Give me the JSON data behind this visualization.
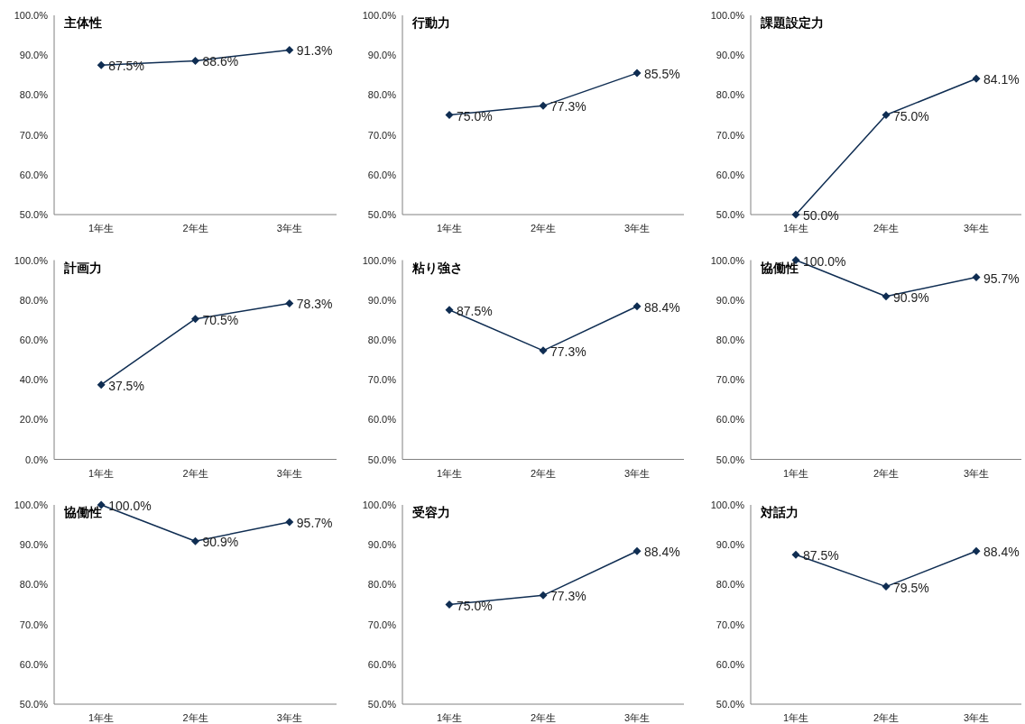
{
  "chart_data": [
    {
      "type": "line",
      "title": "主体性",
      "categories": [
        "1年生",
        "2年生",
        "3年生"
      ],
      "marker": "diamond",
      "ylim": [
        50,
        100
      ],
      "yticks": [
        {
          "value": 50,
          "label": "50.0%"
        },
        {
          "value": 60,
          "label": "60.0%"
        },
        {
          "value": 70,
          "label": "70.0%"
        },
        {
          "value": 80,
          "label": "80.0%"
        },
        {
          "value": 90,
          "label": "90.0%"
        },
        {
          "value": 100,
          "label": "100.0%"
        }
      ],
      "series": [
        {
          "color": "#0f2d52",
          "values": [
            87.5,
            88.6,
            91.3
          ],
          "value_labels": [
            "87.5%",
            "88.6%",
            "91.3%"
          ]
        }
      ]
    },
    {
      "type": "line",
      "title": "行動力",
      "categories": [
        "1年生",
        "2年生",
        "3年生"
      ],
      "marker": "diamond",
      "ylim": [
        50,
        100
      ],
      "yticks": [
        {
          "value": 50,
          "label": "50.0%"
        },
        {
          "value": 60,
          "label": "60.0%"
        },
        {
          "value": 70,
          "label": "70.0%"
        },
        {
          "value": 80,
          "label": "80.0%"
        },
        {
          "value": 90,
          "label": "90.0%"
        },
        {
          "value": 100,
          "label": "100.0%"
        }
      ],
      "series": [
        {
          "color": "#0f2d52",
          "values": [
            75.0,
            77.3,
            85.5
          ],
          "value_labels": [
            "75.0%",
            "77.3%",
            "85.5%"
          ]
        }
      ]
    },
    {
      "type": "line",
      "title": "課題設定力",
      "categories": [
        "1年生",
        "2年生",
        "3年生"
      ],
      "marker": "diamond",
      "ylim": [
        50,
        100
      ],
      "yticks": [
        {
          "value": 50,
          "label": "50.0%"
        },
        {
          "value": 60,
          "label": "60.0%"
        },
        {
          "value": 70,
          "label": "70.0%"
        },
        {
          "value": 80,
          "label": "80.0%"
        },
        {
          "value": 90,
          "label": "90.0%"
        },
        {
          "value": 100,
          "label": "100.0%"
        }
      ],
      "series": [
        {
          "color": "#0f2d52",
          "values": [
            50.0,
            75.0,
            84.1
          ],
          "value_labels": [
            "50.0%",
            "75.0%",
            "84.1%"
          ]
        }
      ]
    },
    {
      "type": "line",
      "title": "計画力",
      "categories": [
        "1年生",
        "2年生",
        "3年生"
      ],
      "marker": "diamond",
      "ylim": [
        0,
        100
      ],
      "yticks": [
        {
          "value": 0,
          "label": "0.0%"
        },
        {
          "value": 20,
          "label": "20.0%"
        },
        {
          "value": 40,
          "label": "40.0%"
        },
        {
          "value": 60,
          "label": "60.0%"
        },
        {
          "value": 80,
          "label": "80.0%"
        },
        {
          "value": 100,
          "label": "100.0%"
        }
      ],
      "series": [
        {
          "color": "#0f2d52",
          "values": [
            37.5,
            70.5,
            78.3
          ],
          "value_labels": [
            "37.5%",
            "70.5%",
            "78.3%"
          ]
        }
      ]
    },
    {
      "type": "line",
      "title": "粘り強さ",
      "categories": [
        "1年生",
        "2年生",
        "3年生"
      ],
      "marker": "diamond",
      "ylim": [
        50,
        100
      ],
      "yticks": [
        {
          "value": 50,
          "label": "50.0%"
        },
        {
          "value": 60,
          "label": "60.0%"
        },
        {
          "value": 70,
          "label": "70.0%"
        },
        {
          "value": 80,
          "label": "80.0%"
        },
        {
          "value": 90,
          "label": "90.0%"
        },
        {
          "value": 100,
          "label": "100.0%"
        }
      ],
      "series": [
        {
          "color": "#0f2d52",
          "values": [
            87.5,
            77.3,
            88.4
          ],
          "value_labels": [
            "87.5%",
            "77.3%",
            "88.4%"
          ]
        }
      ]
    },
    {
      "type": "line",
      "title": "協働性",
      "categories": [
        "1年生",
        "2年生",
        "3年生"
      ],
      "marker": "diamond",
      "ylim": [
        50,
        100
      ],
      "yticks": [
        {
          "value": 50,
          "label": "50.0%"
        },
        {
          "value": 60,
          "label": "60.0%"
        },
        {
          "value": 70,
          "label": "70.0%"
        },
        {
          "value": 80,
          "label": "80.0%"
        },
        {
          "value": 90,
          "label": "90.0%"
        },
        {
          "value": 100,
          "label": "100.0%"
        }
      ],
      "series": [
        {
          "color": "#0f2d52",
          "values": [
            100.0,
            90.9,
            95.7
          ],
          "value_labels": [
            "100.0%",
            "90.9%",
            "95.7%"
          ]
        }
      ]
    },
    {
      "type": "line",
      "title": "協働性",
      "categories": [
        "1年生",
        "2年生",
        "3年生"
      ],
      "marker": "diamond",
      "ylim": [
        50,
        100
      ],
      "yticks": [
        {
          "value": 50,
          "label": "50.0%"
        },
        {
          "value": 60,
          "label": "60.0%"
        },
        {
          "value": 70,
          "label": "70.0%"
        },
        {
          "value": 80,
          "label": "80.0%"
        },
        {
          "value": 90,
          "label": "90.0%"
        },
        {
          "value": 100,
          "label": "100.0%"
        }
      ],
      "series": [
        {
          "color": "#0f2d52",
          "values": [
            100.0,
            90.9,
            95.7
          ],
          "value_labels": [
            "100.0%",
            "90.9%",
            "95.7%"
          ]
        }
      ]
    },
    {
      "type": "line",
      "title": "受容力",
      "categories": [
        "1年生",
        "2年生",
        "3年生"
      ],
      "marker": "diamond",
      "ylim": [
        50,
        100
      ],
      "yticks": [
        {
          "value": 50,
          "label": "50.0%"
        },
        {
          "value": 60,
          "label": "60.0%"
        },
        {
          "value": 70,
          "label": "70.0%"
        },
        {
          "value": 80,
          "label": "80.0%"
        },
        {
          "value": 90,
          "label": "90.0%"
        },
        {
          "value": 100,
          "label": "100.0%"
        }
      ],
      "series": [
        {
          "color": "#0f2d52",
          "values": [
            75.0,
            77.3,
            88.4
          ],
          "value_labels": [
            "75.0%",
            "77.3%",
            "88.4%"
          ]
        }
      ]
    },
    {
      "type": "line",
      "title": "対話力",
      "categories": [
        "1年生",
        "2年生",
        "3年生"
      ],
      "marker": "diamond",
      "ylim": [
        50,
        100
      ],
      "yticks": [
        {
          "value": 50,
          "label": "50.0%"
        },
        {
          "value": 60,
          "label": "60.0%"
        },
        {
          "value": 70,
          "label": "70.0%"
        },
        {
          "value": 80,
          "label": "80.0%"
        },
        {
          "value": 90,
          "label": "90.0%"
        },
        {
          "value": 100,
          "label": "100.0%"
        }
      ],
      "series": [
        {
          "color": "#0f2d52",
          "values": [
            87.5,
            79.5,
            88.4
          ],
          "value_labels": [
            "87.5%",
            "79.5%",
            "88.4%"
          ]
        }
      ]
    }
  ]
}
